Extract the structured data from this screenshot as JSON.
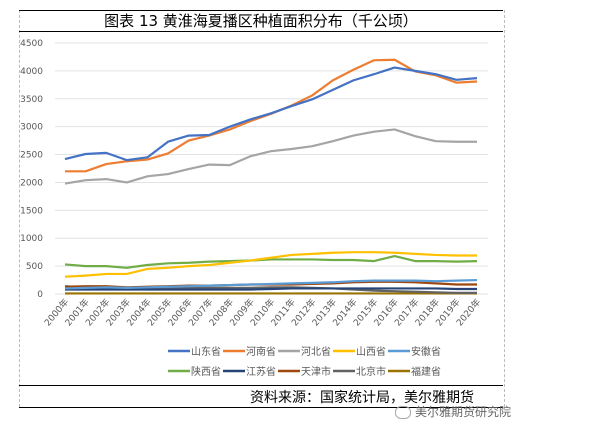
{
  "chart_data": {
    "type": "line",
    "title": "图表 13 黄淮海夏播区种植面积分布（千公顷）",
    "source": "资料来源：国家统计局，美尔雅期货",
    "watermark": "美尔雅期货研究院",
    "ylim": [
      0,
      4500
    ],
    "yticks": [
      0,
      500,
      1000,
      1500,
      2000,
      2500,
      3000,
      3500,
      4000,
      4500
    ],
    "grid": true,
    "legend_position": "bottom",
    "categories": [
      "2000年",
      "2001年",
      "2002年",
      "2003年",
      "2004年",
      "2005年",
      "2006年",
      "2007年",
      "2008年",
      "2009年",
      "2010年",
      "2011年",
      "2012年",
      "2013年",
      "2014年",
      "2015年",
      "2016年",
      "2017年",
      "2018年",
      "2019年",
      "2020年"
    ],
    "series": [
      {
        "name": "山东省",
        "color": "#4472C4",
        "values": [
          2420,
          2510,
          2530,
          2400,
          2450,
          2730,
          2840,
          2850,
          3000,
          3130,
          3240,
          3370,
          3490,
          3660,
          3830,
          3940,
          4060,
          4000,
          3940,
          3840,
          3870
        ]
      },
      {
        "name": "河南省",
        "color": "#ED7D31",
        "values": [
          2200,
          2200,
          2330,
          2380,
          2410,
          2520,
          2750,
          2840,
          2950,
          3100,
          3230,
          3380,
          3560,
          3830,
          4020,
          4190,
          4200,
          3990,
          3920,
          3790,
          3810
        ]
      },
      {
        "name": "河北省",
        "color": "#A5A5A5",
        "values": [
          1980,
          2040,
          2060,
          2000,
          2110,
          2150,
          2240,
          2320,
          2310,
          2470,
          2560,
          2600,
          2650,
          2740,
          2840,
          2910,
          2950,
          2830,
          2740,
          2730,
          2730
        ]
      },
      {
        "name": "山西省",
        "color": "#FFC000",
        "values": [
          310,
          330,
          360,
          360,
          450,
          470,
          500,
          520,
          560,
          600,
          650,
          700,
          720,
          740,
          750,
          750,
          740,
          720,
          700,
          690,
          690
        ]
      },
      {
        "name": "安徽省",
        "color": "#5B9BD5",
        "values": [
          100,
          110,
          120,
          110,
          120,
          130,
          140,
          150,
          160,
          170,
          180,
          190,
          200,
          210,
          230,
          240,
          240,
          240,
          230,
          240,
          250
        ]
      },
      {
        "name": "陕西省",
        "color": "#70AD47",
        "values": [
          530,
          500,
          500,
          470,
          520,
          550,
          560,
          580,
          590,
          600,
          620,
          620,
          620,
          610,
          610,
          590,
          680,
          590,
          590,
          580,
          590
        ]
      },
      {
        "name": "江苏省",
        "color": "#264478",
        "values": [
          80,
          80,
          80,
          80,
          80,
          80,
          80,
          80,
          80,
          80,
          90,
          100,
          100,
          100,
          100,
          100,
          100,
          100,
          100,
          90,
          90
        ]
      },
      {
        "name": "天津市",
        "color": "#9E480E",
        "values": [
          130,
          140,
          140,
          120,
          130,
          140,
          150,
          150,
          160,
          170,
          170,
          170,
          180,
          190,
          210,
          220,
          220,
          210,
          190,
          170,
          170
        ]
      },
      {
        "name": "北京市",
        "color": "#636363",
        "values": [
          140,
          120,
          110,
          100,
          110,
          110,
          110,
          110,
          110,
          110,
          120,
          120,
          110,
          100,
          80,
          60,
          50,
          40,
          30,
          20,
          20
        ]
      },
      {
        "name": "福建省",
        "color": "#997300",
        "values": [
          10,
          10,
          10,
          10,
          10,
          10,
          10,
          10,
          10,
          10,
          10,
          10,
          10,
          10,
          10,
          10,
          10,
          10,
          10,
          10,
          10
        ]
      }
    ]
  }
}
